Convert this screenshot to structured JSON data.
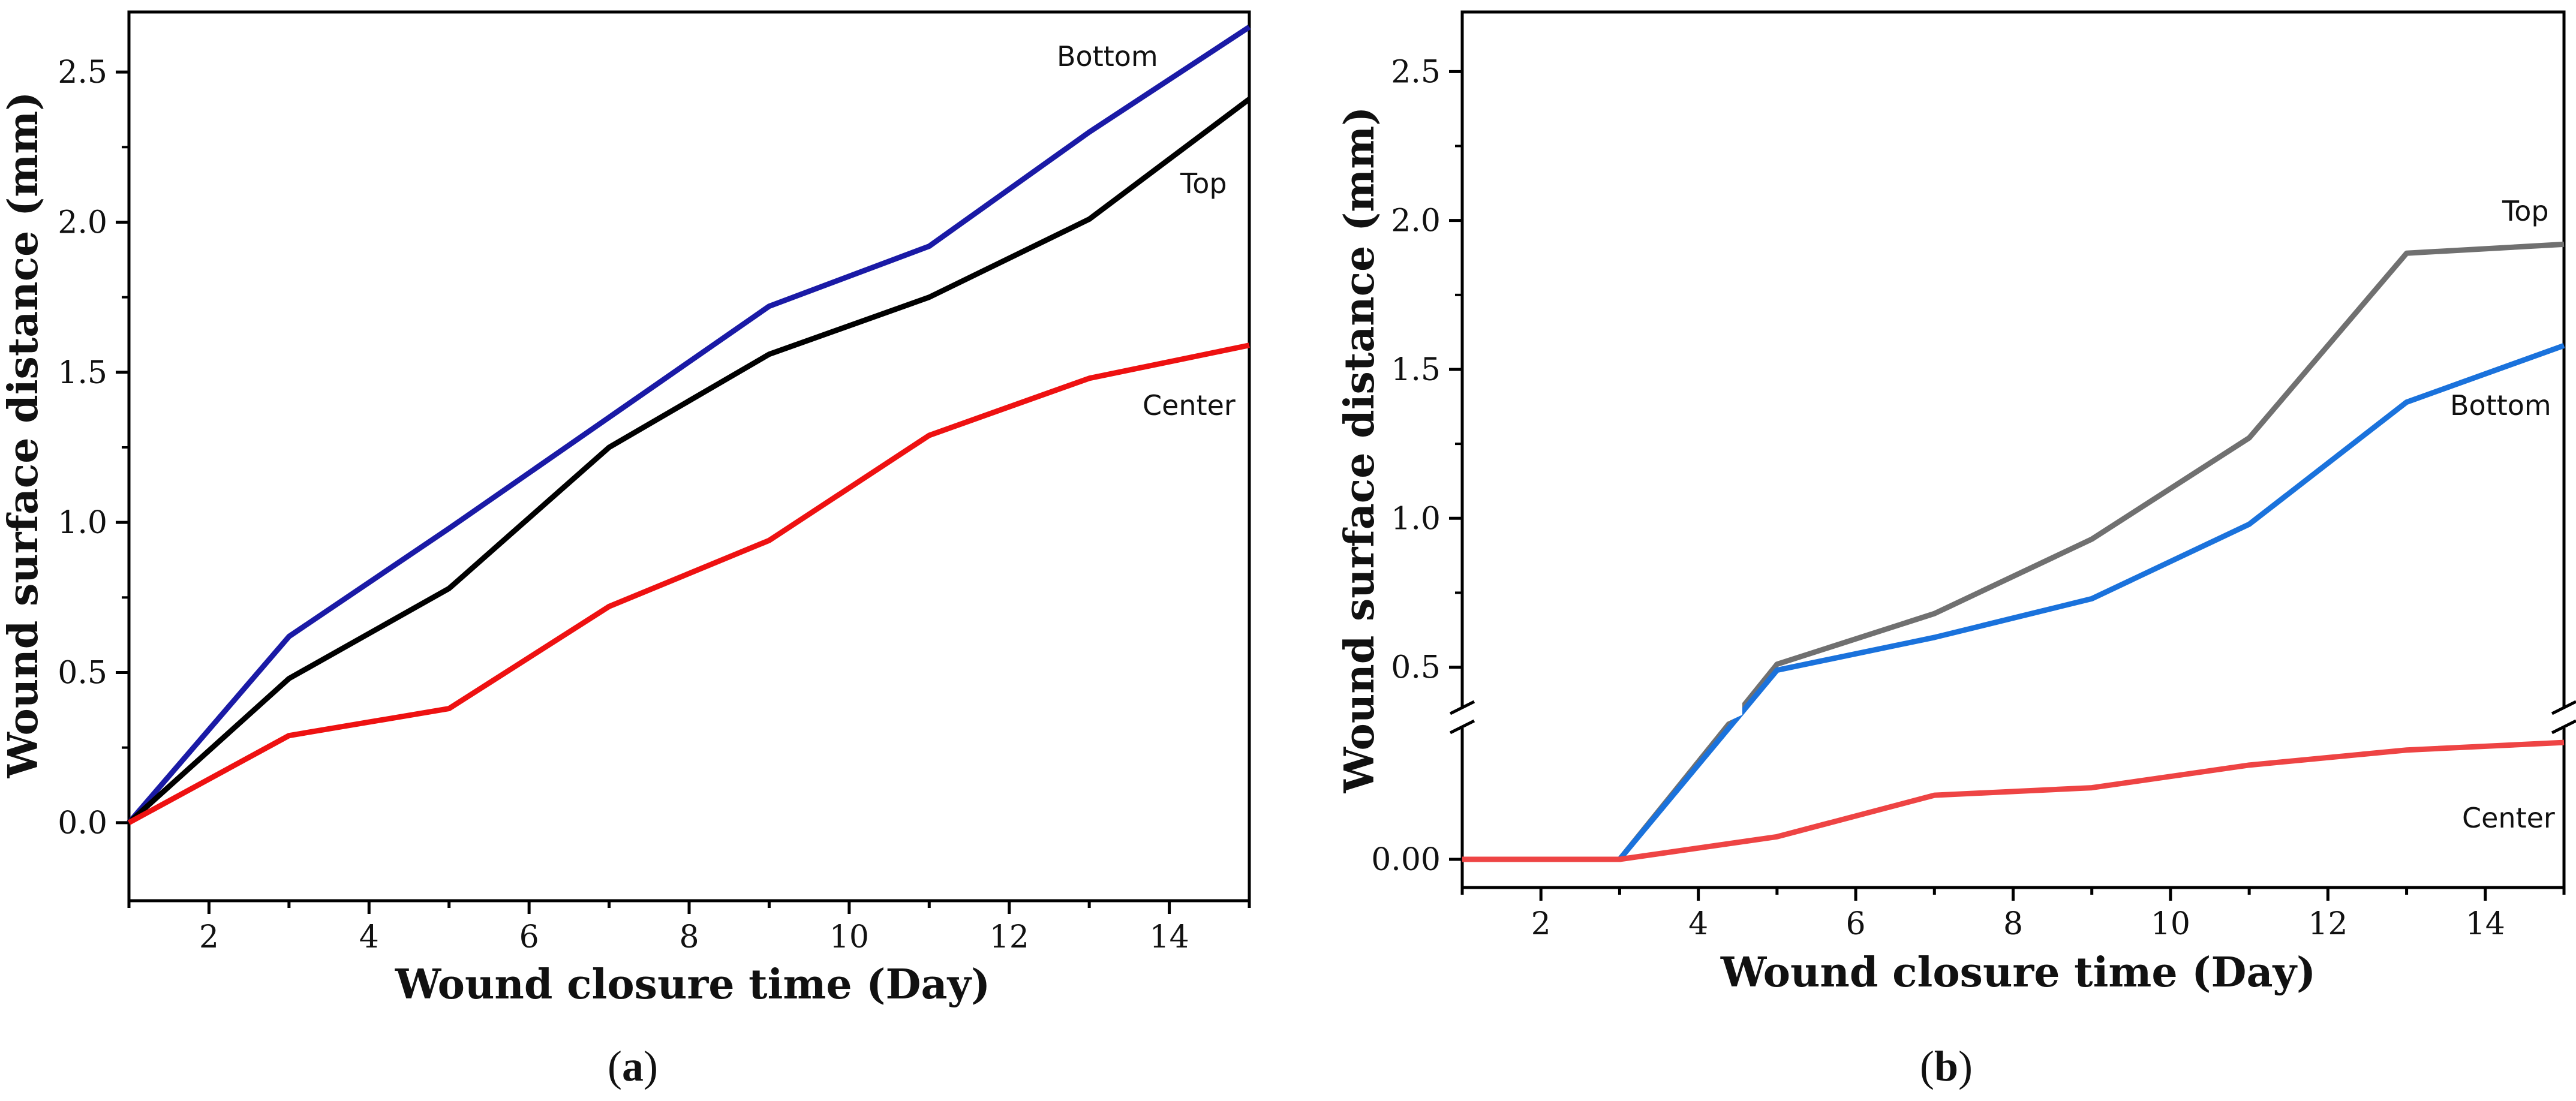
{
  "chart_data": [
    {
      "type": "line",
      "panel": "a",
      "caption": "(a)",
      "caption_open": "(",
      "caption_letter": "a",
      "caption_close": ")",
      "xlabel": "Wound closure time (Day)",
      "ylabel": "Wound surface distance (mm)",
      "xlim": [
        1,
        15
      ],
      "ylim": [
        -0.26,
        2.7
      ],
      "xticks": [
        2,
        4,
        6,
        8,
        10,
        12,
        14
      ],
      "yticks": [
        0.0,
        0.5,
        1.0,
        1.5,
        2.0,
        2.5
      ],
      "yticklabels": [
        "0.0",
        "0.5",
        "1.0",
        "1.5",
        "2.0",
        "2.5"
      ],
      "x": [
        1,
        3,
        5,
        7,
        9,
        11,
        13,
        15
      ],
      "series": [
        {
          "name": "Bottom",
          "color": "#1a1aa6",
          "values": [
            0.0,
            0.62,
            0.98,
            1.35,
            1.72,
            1.92,
            2.3,
            2.65
          ]
        },
        {
          "name": "Top",
          "color": "#000000",
          "values": [
            0.0,
            0.48,
            0.78,
            1.25,
            1.56,
            1.75,
            2.01,
            2.41
          ]
        },
        {
          "name": "Center",
          "color": "#ee1111",
          "values": [
            0.0,
            0.29,
            0.38,
            0.72,
            0.94,
            1.29,
            1.48,
            1.59
          ]
        }
      ],
      "annotations": [
        {
          "series": "Bottom",
          "text": "Bottom",
          "x": 13.3,
          "y": 2.56
        },
        {
          "series": "Top",
          "text": "Top",
          "x": 14.2,
          "y": 2.08
        },
        {
          "series": "Center",
          "text": "Center",
          "x": 14.2,
          "y": 1.34
        }
      ]
    },
    {
      "type": "line",
      "panel": "b",
      "caption": "(b)",
      "caption_open": "(",
      "caption_letter": "b",
      "caption_close": ")",
      "xlabel": "Wound closure time (Day)",
      "ylabel": "Wound surface distance (mm)",
      "xlim": [
        1,
        15
      ],
      "y_axis_break": true,
      "lower_segment": {
        "range": [
          0.0,
          0.35
        ],
        "ticks": [
          0.0
        ],
        "ticklabels": [
          "0.00"
        ]
      },
      "upper_segment": {
        "range": [
          0.32,
          2.7
        ],
        "ticks": [
          0.5,
          1.0,
          1.5,
          2.0,
          2.5
        ],
        "ticklabels": [
          "0.5",
          "1.0",
          "1.5",
          "2.0",
          "2.5"
        ]
      },
      "xticks": [
        2,
        4,
        6,
        8,
        10,
        12,
        14
      ],
      "x": [
        1,
        3,
        5,
        7,
        9,
        11,
        13,
        15
      ],
      "series": [
        {
          "name": "Top",
          "color": "#707070",
          "values": [
            0.0,
            0.0,
            0.51,
            0.68,
            0.93,
            1.27,
            1.89,
            1.92
          ]
        },
        {
          "name": "Bottom",
          "color": "#1a72dc",
          "values": [
            0.0,
            0.0,
            0.49,
            0.6,
            0.73,
            0.98,
            1.39,
            1.58
          ]
        },
        {
          "name": "Center",
          "color": "#ee4444",
          "values": [
            0.0,
            0.0,
            0.06,
            0.17,
            0.19,
            0.25,
            0.29,
            0.31
          ]
        }
      ],
      "annotations": [
        {
          "series": "Top",
          "text": "Top",
          "x": 14.2,
          "y": 2.0
        },
        {
          "series": "Bottom",
          "text": "Bottom",
          "x": 13.6,
          "y": 1.42
        },
        {
          "series": "Center",
          "text": "Center",
          "x": 13.6,
          "y": 0.1
        }
      ]
    }
  ]
}
